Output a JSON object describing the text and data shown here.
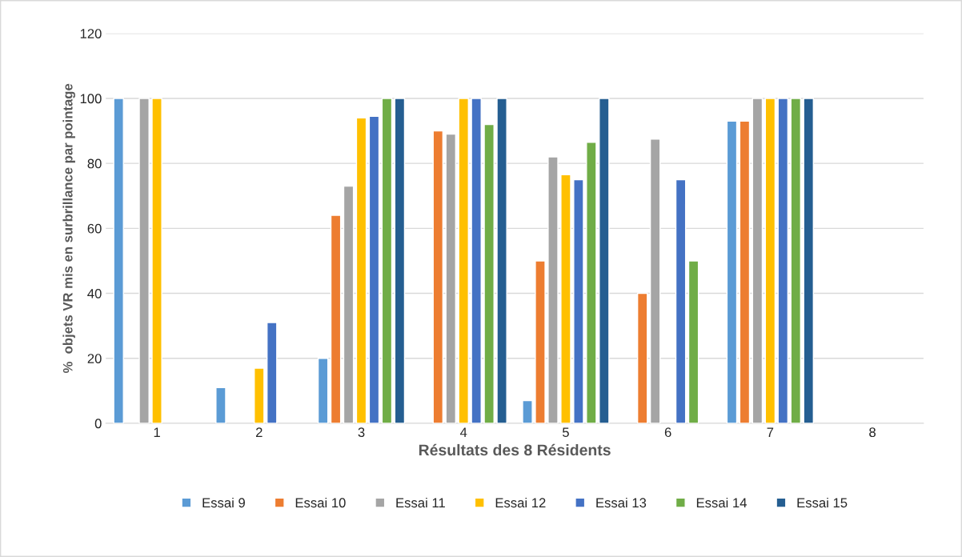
{
  "chart_data": {
    "type": "bar",
    "xlabel": "Résultats des 8 Résidents",
    "ylabel": "%  objets VR mis en surbrillance par pointage",
    "categories": [
      "1",
      "2",
      "3",
      "4",
      "5",
      "6",
      "7",
      "8"
    ],
    "series": [
      {
        "name": "Essai 9",
        "color": "#5b9bd5",
        "values": [
          100,
          11,
          20,
          null,
          7,
          null,
          93,
          null
        ]
      },
      {
        "name": "Essai 10",
        "color": "#ed7d31",
        "values": [
          null,
          null,
          64,
          90,
          50,
          40,
          93,
          null
        ]
      },
      {
        "name": "Essai 11",
        "color": "#a5a5a5",
        "values": [
          100,
          null,
          73,
          89,
          82,
          87.5,
          100,
          null
        ]
      },
      {
        "name": "Essai 12",
        "color": "#ffc000",
        "values": [
          100,
          17,
          94,
          100,
          76.5,
          null,
          100,
          null
        ]
      },
      {
        "name": "Essai 13",
        "color": "#4472c4",
        "values": [
          null,
          31,
          94.5,
          100,
          75,
          75,
          100,
          null
        ]
      },
      {
        "name": "Essai 14",
        "color": "#70ad47",
        "values": [
          null,
          null,
          100,
          92,
          86.5,
          50,
          100,
          null
        ]
      },
      {
        "name": "Essai 15",
        "color": "#255e91",
        "values": [
          null,
          null,
          100,
          100,
          100,
          null,
          100,
          null
        ]
      }
    ],
    "ylim": [
      0,
      120
    ],
    "yticks": [
      0,
      20,
      40,
      60,
      80,
      100,
      120
    ],
    "grid": "y",
    "legend": "bottom"
  }
}
